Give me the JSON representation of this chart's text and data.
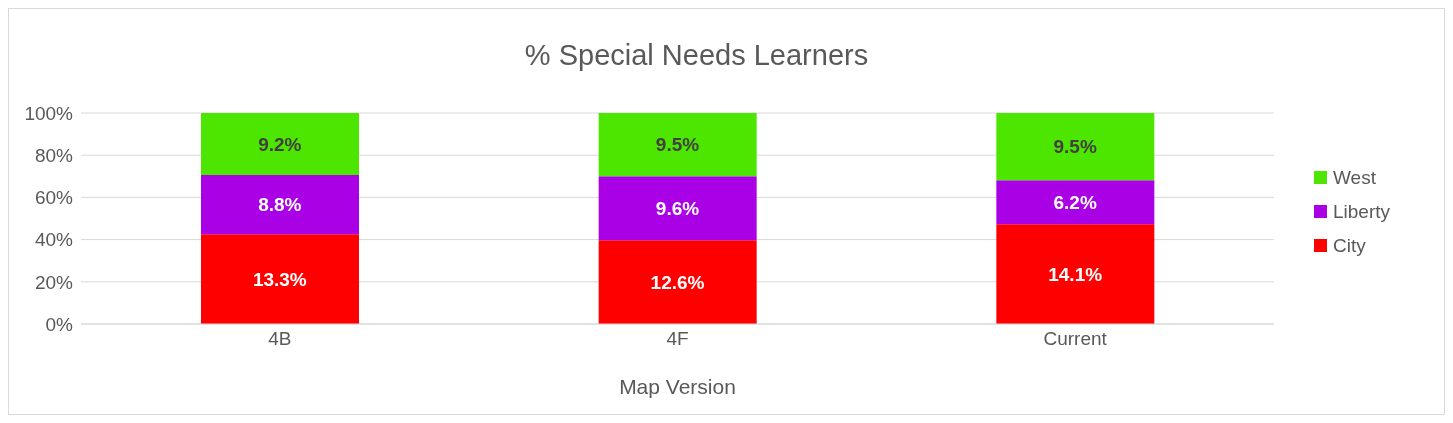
{
  "chart_data": {
    "type": "bar",
    "title": "% Special Needs Learners",
    "xlabel": "Map Version",
    "categories": [
      "4B",
      "4F",
      "Current"
    ],
    "stacked": true,
    "series": [
      {
        "name": "City",
        "color": "#ff0000",
        "values": [
          42.5,
          39.7,
          47.3
        ]
      },
      {
        "name": "Liberty",
        "color": "#aa00e6",
        "values": [
          28.1,
          30.3,
          20.8
        ]
      },
      {
        "name": "West",
        "color": "#4ce600",
        "values": [
          29.4,
          30.0,
          31.9
        ]
      }
    ],
    "annotations": [
      {
        "text": "13.3%",
        "x": "4B",
        "y": 42.5
      },
      {
        "text": "8.8%",
        "x": "4B",
        "y": 70.6
      },
      {
        "text": "9.2%",
        "x": "4B",
        "y": 100.0
      },
      {
        "text": "12.6%",
        "x": "4F",
        "y": 39.7
      },
      {
        "text": "9.6%",
        "x": "4F",
        "y": 70.0
      },
      {
        "text": "9.5%",
        "x": "4F",
        "y": 100.0
      },
      {
        "text": "14.1%",
        "x": "Current",
        "y": 47.3
      },
      {
        "text": "6.2%",
        "x": "Current",
        "y": 68.1
      },
      {
        "text": "9.5%",
        "x": "Current",
        "y": 100.0
      }
    ],
    "ylim": [
      0,
      100
    ],
    "yticks": [
      {
        "value": 0,
        "label": "0%"
      },
      {
        "value": 20,
        "label": "20%"
      },
      {
        "value": 40,
        "label": "40%"
      },
      {
        "value": 60,
        "label": "60%"
      },
      {
        "value": 80,
        "label": "80%"
      },
      {
        "value": 100,
        "label": "100%"
      }
    ],
    "grid": "y",
    "legend": "right"
  }
}
